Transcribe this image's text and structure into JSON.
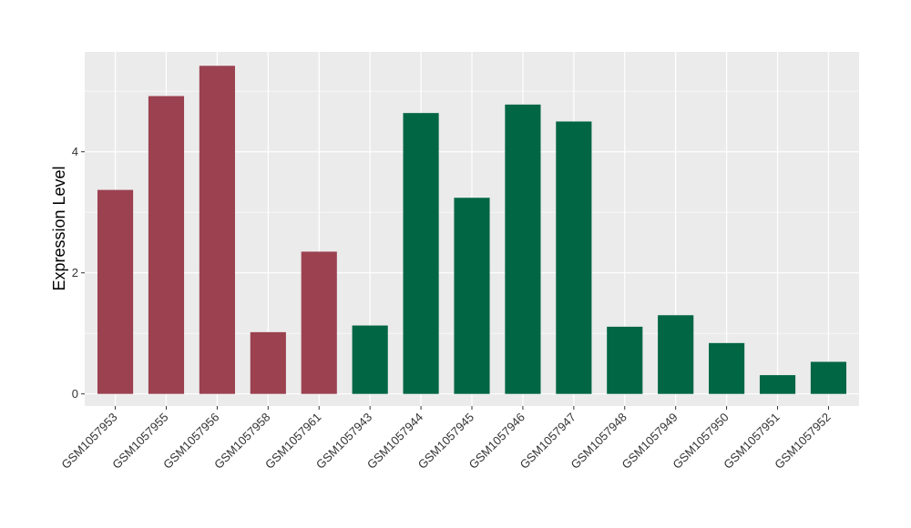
{
  "chart_data": {
    "type": "bar",
    "title": "",
    "xlabel": "",
    "ylabel": "Expression Level",
    "ylim": [
      -0.2,
      5.65
    ],
    "yticks": [
      0,
      2,
      4
    ],
    "grid": true,
    "legend": "none",
    "categories": [
      "GSM1057953",
      "GSM1057955",
      "GSM1057956",
      "GSM1057958",
      "GSM1057961",
      "GSM1057943",
      "GSM1057944",
      "GSM1057945",
      "GSM1057946",
      "GSM1057947",
      "GSM1057948",
      "GSM1057949",
      "GSM1057950",
      "GSM1057951",
      "GSM1057952"
    ],
    "values": [
      3.37,
      4.92,
      5.42,
      1.02,
      2.35,
      1.13,
      4.64,
      3.24,
      4.78,
      4.5,
      1.11,
      1.3,
      0.84,
      0.31,
      0.53
    ],
    "bar_colors": [
      "#9b4150",
      "#9b4150",
      "#9b4150",
      "#9b4150",
      "#9b4150",
      "#006644",
      "#006644",
      "#006644",
      "#006644",
      "#006644",
      "#006644",
      "#006644",
      "#006644",
      "#006644",
      "#006644"
    ]
  },
  "colors": {
    "panel_background": "#ebebeb",
    "grid": "#ffffff",
    "axis_tick": "#333333"
  }
}
